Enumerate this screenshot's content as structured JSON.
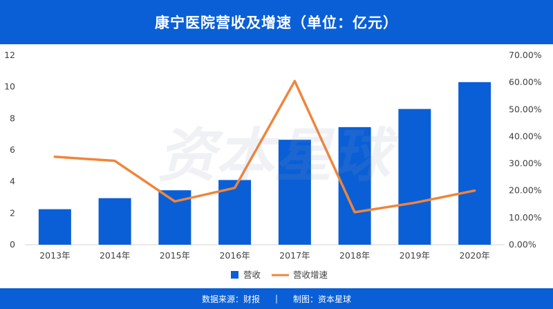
{
  "header": {
    "title": "康宁医院营收及增速（单位：亿元）"
  },
  "footer": {
    "source": "数据来源：财报",
    "separator": "|",
    "credit": "制图：资本星球"
  },
  "colors": {
    "header_bg": "#0a5fd6",
    "bar": "#0a5fd6",
    "line": "#f0853a",
    "text": "#404040"
  },
  "chart_data": {
    "type": "bar",
    "categories": [
      "2013年",
      "2014年",
      "2015年",
      "2016年",
      "2017年",
      "2018年",
      "2019年",
      "2020年"
    ],
    "series": [
      {
        "name": "营收",
        "type": "bar",
        "axis": "left",
        "values": [
          2.25,
          2.95,
          3.45,
          4.1,
          6.65,
          7.45,
          8.6,
          10.3
        ]
      },
      {
        "name": "营收增速",
        "type": "line",
        "axis": "right",
        "values": [
          32.5,
          31.0,
          16.0,
          21.0,
          60.5,
          12.0,
          15.5,
          20.0
        ]
      }
    ],
    "ylim_left": [
      0,
      12
    ],
    "yticks_left": [
      "0",
      "2",
      "4",
      "6",
      "8",
      "10",
      "12"
    ],
    "ylim_right": [
      0,
      70
    ],
    "yticks_right": [
      "0.00%",
      "10.00%",
      "20.00%",
      "30.00%",
      "40.00%",
      "50.00%",
      "60.00%",
      "70.00%"
    ],
    "grid": false,
    "legend_position": "bottom",
    "legend": [
      "营收",
      "营收增速"
    ]
  }
}
